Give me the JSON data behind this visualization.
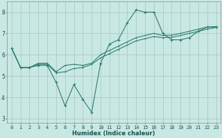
{
  "xlabel": "Humidex (Indice chaleur)",
  "ylabel": "",
  "background_color": "#c8e8e4",
  "grid_color": "#b0c8c4",
  "line_color": "#2e7b6e",
  "x_values": [
    0,
    1,
    2,
    3,
    4,
    5,
    6,
    7,
    8,
    9,
    10,
    11,
    12,
    13,
    14,
    15,
    16,
    17,
    18,
    19,
    20,
    21,
    22,
    23
  ],
  "line1_y": [
    6.3,
    5.4,
    5.4,
    5.5,
    5.5,
    4.7,
    3.6,
    4.6,
    3.9,
    3.3,
    5.6,
    6.5,
    6.7,
    7.5,
    8.1,
    8.0,
    8.0,
    7.0,
    6.7,
    6.7,
    6.8,
    7.1,
    7.3,
    7.3
  ],
  "line2_y": [
    6.3,
    5.4,
    5.4,
    5.55,
    5.55,
    5.15,
    5.2,
    5.35,
    5.4,
    5.55,
    5.85,
    6.05,
    6.25,
    6.45,
    6.65,
    6.75,
    6.85,
    6.8,
    6.82,
    6.9,
    7.0,
    7.1,
    7.2,
    7.28
  ],
  "line3_y": [
    6.3,
    5.4,
    5.4,
    5.6,
    5.6,
    5.2,
    5.5,
    5.55,
    5.5,
    5.6,
    6.0,
    6.2,
    6.4,
    6.6,
    6.8,
    6.9,
    7.0,
    6.9,
    6.92,
    7.0,
    7.1,
    7.2,
    7.3,
    7.32
  ],
  "ylim": [
    2.8,
    8.5
  ],
  "xlim": [
    -0.5,
    23.5
  ],
  "yticks": [
    3,
    4,
    5,
    6,
    7,
    8
  ],
  "xticks": [
    0,
    1,
    2,
    3,
    4,
    5,
    6,
    7,
    8,
    9,
    10,
    11,
    12,
    13,
    14,
    15,
    16,
    17,
    18,
    19,
    20,
    21,
    22,
    23
  ],
  "xlabel_fontsize": 6.0,
  "tick_fontsize": 5.0
}
